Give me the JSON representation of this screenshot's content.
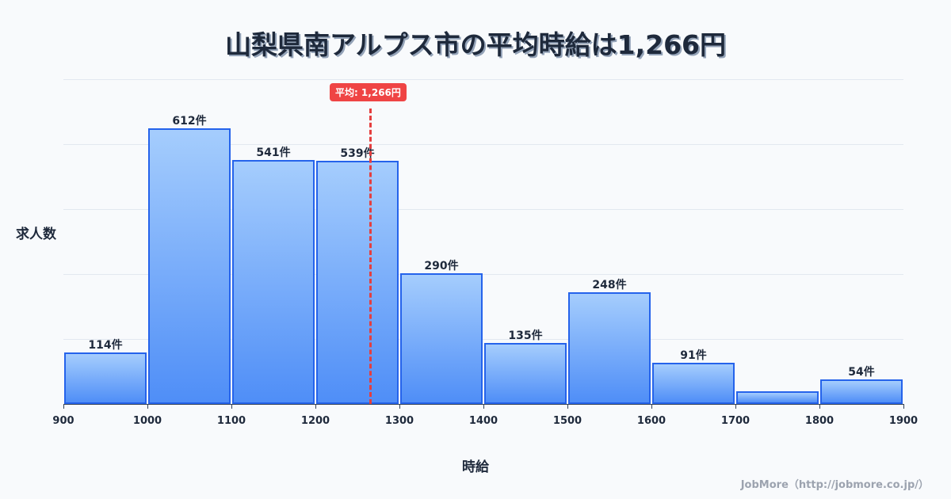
{
  "title": "山梨県南アルプス市の平均時給は1,266円",
  "ylabel": "求人数",
  "xlabel": "時給",
  "footer": "JobMore（http://jobmore.co.jp/）",
  "average": {
    "value": 1266,
    "label": "平均: 1,266円",
    "color": "#e53e3e"
  },
  "colors": {
    "bar_border": "#2563eb",
    "bar_top": "#a5cdfd",
    "bar_bottom": "#4f8ef7",
    "avg": "#ef4444"
  },
  "chart_data": {
    "type": "bar",
    "title": "山梨県南アルプス市の平均時給は1,266円",
    "xlabel": "時給",
    "ylabel": "求人数",
    "bins": [
      [
        900,
        1000
      ],
      [
        1000,
        1100
      ],
      [
        1100,
        1200
      ],
      [
        1200,
        1300
      ],
      [
        1300,
        1400
      ],
      [
        1400,
        1500
      ],
      [
        1500,
        1600
      ],
      [
        1600,
        1700
      ],
      [
        1700,
        1800
      ],
      [
        1800,
        1900
      ]
    ],
    "categories": [
      "900-1000",
      "1000-1100",
      "1100-1200",
      "1200-1300",
      "1300-1400",
      "1400-1500",
      "1500-1600",
      "1600-1700",
      "1700-1800",
      "1800-1900"
    ],
    "values": [
      114,
      612,
      541,
      539,
      290,
      135,
      248,
      91,
      28,
      54
    ],
    "value_labels": [
      "114件",
      "612件",
      "541件",
      "539件",
      "290件",
      "135件",
      "248件",
      "91件",
      "",
      "54件"
    ],
    "xticks": [
      "900",
      "1000",
      "1100",
      "1200",
      "1300",
      "1400",
      "1500",
      "1600",
      "1700",
      "1800",
      "1900"
    ],
    "xlim": [
      900,
      1900
    ],
    "ylim": [
      0,
      720
    ],
    "grid": true,
    "annotations": [
      {
        "type": "vline",
        "x": 1266,
        "label": "平均: 1,266円"
      }
    ]
  }
}
